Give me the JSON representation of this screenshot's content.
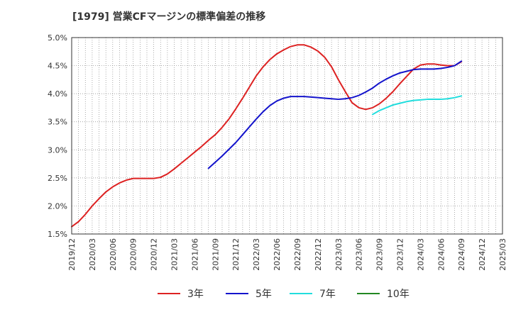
{
  "chart_data": {
    "type": "line",
    "title": "[1979]  営業CFマージンの標準偏差の推移",
    "x_labels": [
      "2019/12",
      "2020/03",
      "2020/06",
      "2020/09",
      "2020/12",
      "2021/03",
      "2021/06",
      "2021/09",
      "2021/12",
      "2022/03",
      "2022/06",
      "2022/09",
      "2022/12",
      "2023/03",
      "2023/06",
      "2023/09",
      "2023/12",
      "2024/03",
      "2024/06",
      "2024/09",
      "2024/12",
      "2025/03"
    ],
    "y_ticks": [
      "5.0%",
      "4.5%",
      "4.0%",
      "3.5%",
      "3.0%",
      "2.5%",
      "2.0%",
      "1.5%"
    ],
    "ylim": [
      1.5,
      5.0
    ],
    "grid": true,
    "legend_position": "bottom",
    "series": [
      {
        "name": "3年",
        "color": "#dd2222",
        "points": [
          [
            "2019/12",
            1.63
          ],
          [
            "2020/01",
            1.72
          ],
          [
            "2020/02",
            1.85
          ],
          [
            "2020/03",
            2.0
          ],
          [
            "2020/04",
            2.13
          ],
          [
            "2020/05",
            2.25
          ],
          [
            "2020/06",
            2.34
          ],
          [
            "2020/07",
            2.41
          ],
          [
            "2020/08",
            2.46
          ],
          [
            "2020/09",
            2.49
          ],
          [
            "2020/10",
            2.49
          ],
          [
            "2020/11",
            2.49
          ],
          [
            "2020/12",
            2.49
          ],
          [
            "2021/01",
            2.51
          ],
          [
            "2021/02",
            2.57
          ],
          [
            "2021/03",
            2.66
          ],
          [
            "2021/04",
            2.76
          ],
          [
            "2021/05",
            2.86
          ],
          [
            "2021/06",
            2.96
          ],
          [
            "2021/07",
            3.06
          ],
          [
            "2021/08",
            3.17
          ],
          [
            "2021/09",
            3.27
          ],
          [
            "2021/10",
            3.4
          ],
          [
            "2021/11",
            3.55
          ],
          [
            "2021/12",
            3.73
          ],
          [
            "2022/01",
            3.92
          ],
          [
            "2022/02",
            4.12
          ],
          [
            "2022/03",
            4.32
          ],
          [
            "2022/04",
            4.48
          ],
          [
            "2022/05",
            4.61
          ],
          [
            "2022/06",
            4.71
          ],
          [
            "2022/07",
            4.78
          ],
          [
            "2022/08",
            4.84
          ],
          [
            "2022/09",
            4.87
          ],
          [
            "2022/10",
            4.87
          ],
          [
            "2022/11",
            4.83
          ],
          [
            "2022/12",
            4.76
          ],
          [
            "2023/01",
            4.65
          ],
          [
            "2023/02",
            4.48
          ],
          [
            "2023/03",
            4.25
          ],
          [
            "2023/04",
            4.04
          ],
          [
            "2023/05",
            3.84
          ],
          [
            "2023/06",
            3.75
          ],
          [
            "2023/07",
            3.72
          ],
          [
            "2023/08",
            3.75
          ],
          [
            "2023/09",
            3.82
          ],
          [
            "2023/10",
            3.92
          ],
          [
            "2023/11",
            4.04
          ],
          [
            "2023/12",
            4.18
          ],
          [
            "2024/01",
            4.31
          ],
          [
            "2024/02",
            4.44
          ],
          [
            "2024/03",
            4.51
          ],
          [
            "2024/04",
            4.53
          ],
          [
            "2024/05",
            4.53
          ],
          [
            "2024/06",
            4.51
          ],
          [
            "2024/07",
            4.5
          ],
          [
            "2024/08",
            4.5
          ],
          [
            "2024/09",
            4.57
          ]
        ]
      },
      {
        "name": "5年",
        "color": "#1414cc",
        "points": [
          [
            "2021/08",
            2.67
          ],
          [
            "2021/09",
            2.78
          ],
          [
            "2021/10",
            2.89
          ],
          [
            "2021/11",
            3.01
          ],
          [
            "2021/12",
            3.13
          ],
          [
            "2022/01",
            3.27
          ],
          [
            "2022/02",
            3.41
          ],
          [
            "2022/03",
            3.55
          ],
          [
            "2022/04",
            3.68
          ],
          [
            "2022/05",
            3.79
          ],
          [
            "2022/06",
            3.87
          ],
          [
            "2022/07",
            3.92
          ],
          [
            "2022/08",
            3.95
          ],
          [
            "2022/09",
            3.95
          ],
          [
            "2022/10",
            3.95
          ],
          [
            "2022/11",
            3.94
          ],
          [
            "2022/12",
            3.93
          ],
          [
            "2023/01",
            3.92
          ],
          [
            "2023/02",
            3.91
          ],
          [
            "2023/03",
            3.9
          ],
          [
            "2023/04",
            3.91
          ],
          [
            "2023/05",
            3.93
          ],
          [
            "2023/06",
            3.97
          ],
          [
            "2023/07",
            4.03
          ],
          [
            "2023/08",
            4.1
          ],
          [
            "2023/09",
            4.19
          ],
          [
            "2023/10",
            4.26
          ],
          [
            "2023/11",
            4.32
          ],
          [
            "2023/12",
            4.37
          ],
          [
            "2024/01",
            4.4
          ],
          [
            "2024/02",
            4.43
          ],
          [
            "2024/03",
            4.44
          ],
          [
            "2024/04",
            4.44
          ],
          [
            "2024/05",
            4.44
          ],
          [
            "2024/06",
            4.45
          ],
          [
            "2024/07",
            4.47
          ],
          [
            "2024/08",
            4.5
          ],
          [
            "2024/09",
            4.58
          ]
        ]
      },
      {
        "name": "7年",
        "color": "#22dddd",
        "points": [
          [
            "2023/08",
            3.63
          ],
          [
            "2023/09",
            3.7
          ],
          [
            "2023/10",
            3.75
          ],
          [
            "2023/11",
            3.8
          ],
          [
            "2023/12",
            3.83
          ],
          [
            "2024/01",
            3.86
          ],
          [
            "2024/02",
            3.88
          ],
          [
            "2024/03",
            3.89
          ],
          [
            "2024/04",
            3.9
          ],
          [
            "2024/05",
            3.9
          ],
          [
            "2024/06",
            3.9
          ],
          [
            "2024/07",
            3.91
          ],
          [
            "2024/08",
            3.93
          ],
          [
            "2024/09",
            3.96
          ]
        ]
      },
      {
        "name": "10年",
        "color": "#228822",
        "points": []
      }
    ]
  }
}
